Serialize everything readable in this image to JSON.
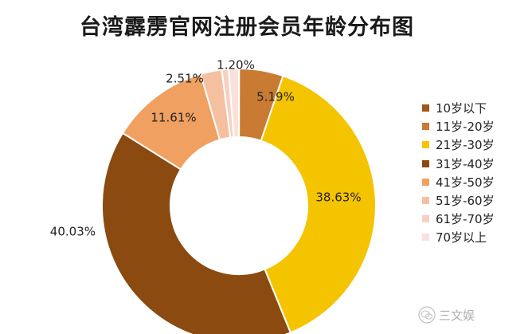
{
  "chart_data": {
    "type": "pie",
    "title": "台湾霹雳官网注册会员年龄分布图",
    "donut": true,
    "legend_position": "right",
    "categories": [
      "10岁以下",
      "11岁-20岁",
      "21岁-30岁",
      "31岁-40岁",
      "41岁-50岁",
      "51岁-60岁",
      "61岁-70岁",
      "70岁以上"
    ],
    "values": [
      0.03,
      5.19,
      38.63,
      40.03,
      11.61,
      2.51,
      0.8,
      1.2
    ],
    "labels": [
      "",
      "5.19%",
      "38.63%",
      "40.03%",
      "11.61%",
      "2.51%",
      "",
      "1.20%"
    ],
    "colors": [
      "#A0571A",
      "#C97A33",
      "#F5C400",
      "#8B4A10",
      "#F0A060",
      "#F5C0A0",
      "#F7D0C0",
      "#FAE1DC"
    ]
  },
  "watermark": {
    "text": "三文娱",
    "icon": "wechat-icon"
  }
}
